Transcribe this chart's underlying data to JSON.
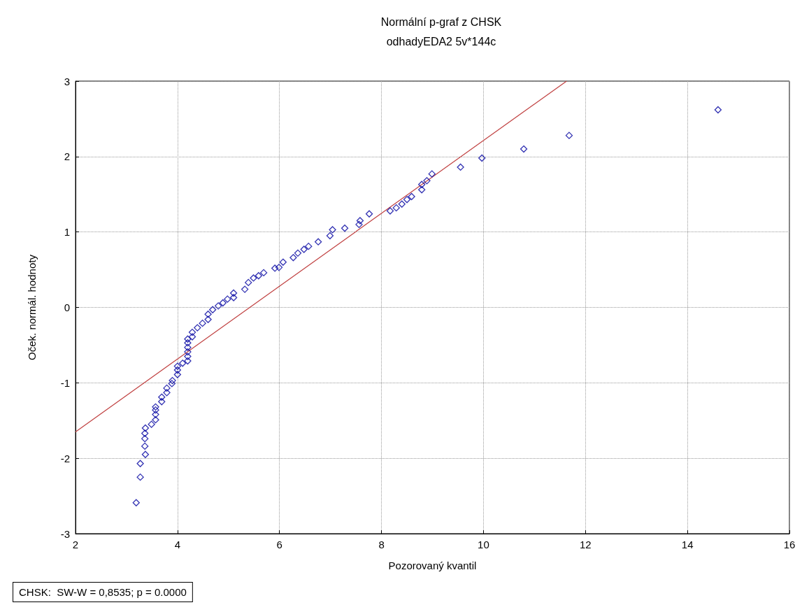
{
  "chart_data": {
    "type": "scatter",
    "title": "Normální p-graf z CHSK",
    "subtitle": "odhadyEDA2 5v*144c",
    "xlabel": "Pozorovaný kvantil",
    "ylabel": "Oček. normál. hodnoty",
    "annotations": [
      "CHSK:  SW-W = 0,8535; p = 0.0000"
    ],
    "xlim": [
      2,
      16
    ],
    "xticks": [
      2,
      4,
      6,
      8,
      10,
      12,
      14,
      16
    ],
    "ylim": [
      -3,
      3
    ],
    "yticks": [
      -3,
      -2,
      -1,
      0,
      1,
      2,
      3
    ],
    "grid": true,
    "series": [
      {
        "marker": "diamond",
        "color": "#0000a0",
        "x": [
          3.19,
          3.27,
          3.27,
          3.37,
          3.36,
          3.36,
          3.36,
          3.37,
          3.49,
          3.57,
          3.57,
          3.57,
          3.57,
          3.69,
          3.69,
          3.79,
          3.79,
          3.89,
          3.9,
          4.0,
          4.0,
          4.0,
          4.1,
          4.2,
          4.2,
          4.2,
          4.2,
          4.2,
          4.2,
          4.29,
          4.29,
          4.39,
          4.49,
          4.6,
          4.6,
          4.69,
          4.8,
          4.89,
          4.98,
          5.1,
          5.1,
          5.32,
          5.39,
          5.49,
          5.59,
          5.69,
          5.91,
          5.99,
          6.07,
          6.27,
          6.36,
          6.48,
          6.57,
          6.76,
          6.99,
          7.04,
          7.28,
          7.56,
          7.58,
          7.76,
          8.17,
          8.29,
          8.4,
          8.5,
          8.59,
          8.79,
          8.79,
          8.89,
          8.99,
          9.55,
          9.97,
          10.79,
          11.68,
          14.6
        ],
        "values": [
          -2.59,
          -2.25,
          -2.07,
          -1.95,
          -1.84,
          -1.74,
          -1.67,
          -1.6,
          -1.55,
          -1.49,
          -1.42,
          -1.36,
          -1.32,
          -1.25,
          -1.19,
          -1.13,
          -1.07,
          -1.01,
          -0.97,
          -0.89,
          -0.83,
          -0.78,
          -0.74,
          -0.71,
          -0.65,
          -0.59,
          -0.53,
          -0.47,
          -0.42,
          -0.39,
          -0.33,
          -0.27,
          -0.21,
          -0.16,
          -0.09,
          -0.03,
          0.02,
          0.06,
          0.11,
          0.13,
          0.19,
          0.24,
          0.33,
          0.39,
          0.42,
          0.46,
          0.52,
          0.53,
          0.6,
          0.66,
          0.72,
          0.77,
          0.81,
          0.87,
          0.95,
          1.03,
          1.05,
          1.1,
          1.15,
          1.24,
          1.28,
          1.32,
          1.37,
          1.43,
          1.47,
          1.56,
          1.63,
          1.68,
          1.77,
          1.86,
          1.98,
          2.1,
          2.28,
          2.62
        ]
      },
      {
        "type": "line",
        "marker": "none",
        "color": "#c04040",
        "x": [
          2,
          11.63
        ],
        "values": [
          -1.65,
          3
        ]
      }
    ]
  }
}
